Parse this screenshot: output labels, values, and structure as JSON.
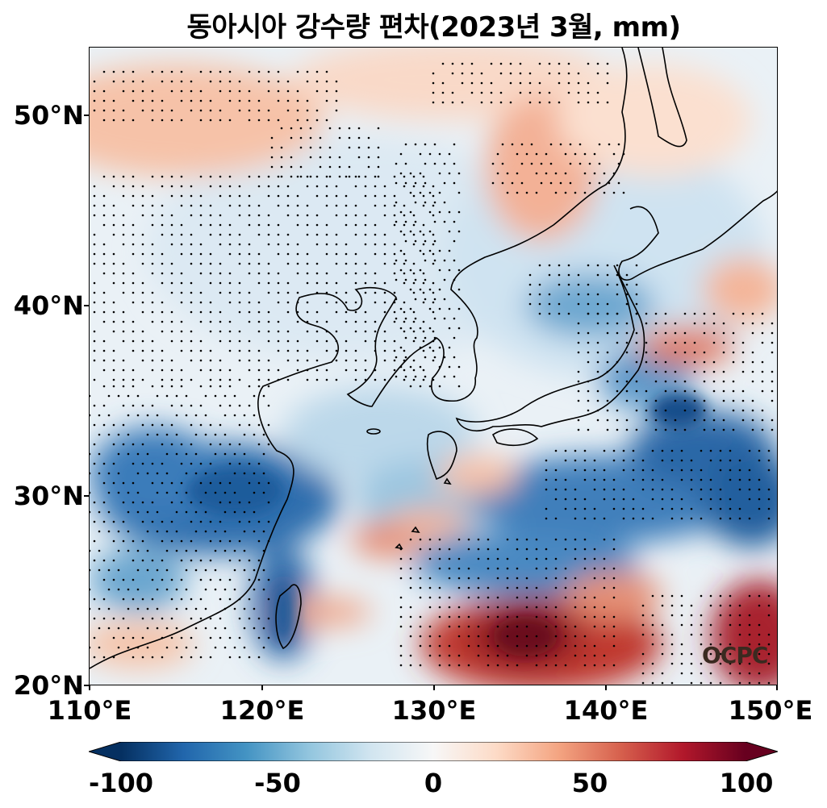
{
  "title": "동아시아 강수량 편차(2023년 3월, mm)",
  "map": {
    "lon_range": [
      110,
      150
    ],
    "lat_range": [
      20,
      53.5
    ],
    "x_ticks": [
      "110°E",
      "120°E",
      "130°E",
      "140°E",
      "150°E"
    ],
    "y_ticks": [
      "20°N",
      "30°N",
      "40°N",
      "50°N"
    ],
    "colormap": "RdBu_r",
    "significance_markers": "stippling dots",
    "watermark": "OCPC"
  },
  "colorbar": {
    "min": -100,
    "max": 100,
    "extend": "both",
    "ticks": [
      "-100",
      "-50",
      "0",
      "50",
      "100"
    ],
    "colors": [
      "#053061",
      "#2166ac",
      "#4393c3",
      "#92c5de",
      "#d1e5f0",
      "#f7f7f7",
      "#fddbc7",
      "#f4a582",
      "#d6604d",
      "#b2182b",
      "#67001f"
    ]
  }
}
